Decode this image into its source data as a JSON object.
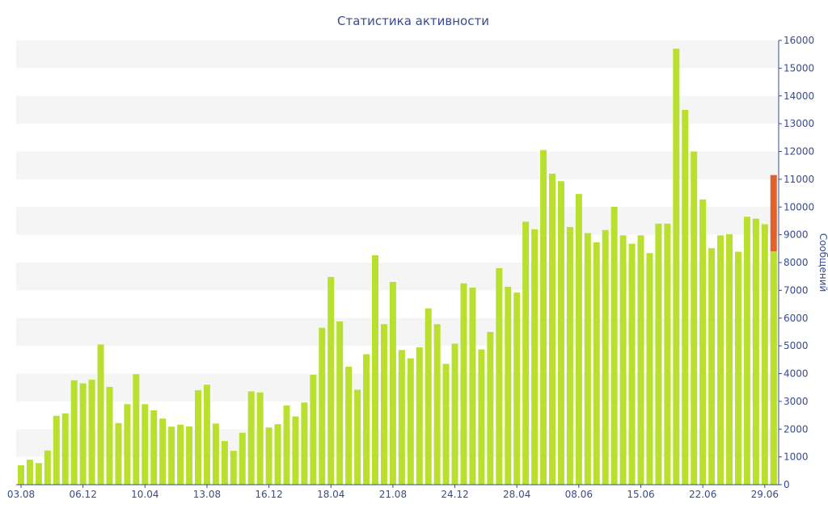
{
  "chart_data": {
    "type": "bar",
    "title": "Статистика активности",
    "xlabel": "",
    "ylabel": "Сообщений",
    "ylim": [
      0,
      16000
    ],
    "yticks": [
      0,
      1000,
      2000,
      3000,
      4000,
      5000,
      6000,
      7000,
      8000,
      9000,
      10000,
      11000,
      12000,
      13000,
      14000,
      15000,
      16000
    ],
    "y_axis_position": "right",
    "grid": "alternating-horizontal-bands",
    "x_tick_labels": [
      {
        "index": 0,
        "label": "03.08"
      },
      {
        "index": 7,
        "label": "06.12"
      },
      {
        "index": 14,
        "label": "10.04"
      },
      {
        "index": 21,
        "label": "13.08"
      },
      {
        "index": 28,
        "label": "16.12"
      },
      {
        "index": 35,
        "label": "18.04"
      },
      {
        "index": 42,
        "label": "21.08"
      },
      {
        "index": 49,
        "label": "24.12"
      },
      {
        "index": 56,
        "label": "28.04"
      },
      {
        "index": 63,
        "label": "08.06"
      },
      {
        "index": 70,
        "label": "15.06"
      },
      {
        "index": 77,
        "label": "22.06"
      },
      {
        "index": 84,
        "label": "29.06"
      }
    ],
    "values": [
      700,
      900,
      780,
      1230,
      2480,
      2570,
      3760,
      3650,
      3780,
      5050,
      3520,
      2220,
      2900,
      3980,
      2900,
      2680,
      2380,
      2090,
      2160,
      2100,
      3400,
      3600,
      2200,
      1570,
      1220,
      1870,
      3360,
      3320,
      2060,
      2180,
      2850,
      2460,
      2960,
      3960,
      5650,
      7480,
      5880,
      4250,
      3420,
      4700,
      8260,
      5780,
      7300,
      4850,
      4550,
      4950,
      6350,
      5780,
      4350,
      5080,
      7250,
      7100,
      4870,
      5500,
      7800,
      7130,
      6920,
      9470,
      9200,
      12050,
      11200,
      10930,
      9280,
      10470,
      9060,
      8730,
      9170,
      10010,
      8980,
      8680,
      8980,
      8340,
      9400,
      9400,
      15700,
      13500,
      12000,
      10270,
      8520,
      8980,
      9020,
      8390,
      9650,
      9580,
      9380,
      8400
    ],
    "highlight": {
      "index": 85,
      "base": 8400,
      "top": 11150,
      "color": "#e0622a"
    },
    "colors": {
      "bar": "#b9e02e",
      "band": "#f5f5f5",
      "axis": "#3a4b8c",
      "text": "#3a4b8c"
    }
  }
}
